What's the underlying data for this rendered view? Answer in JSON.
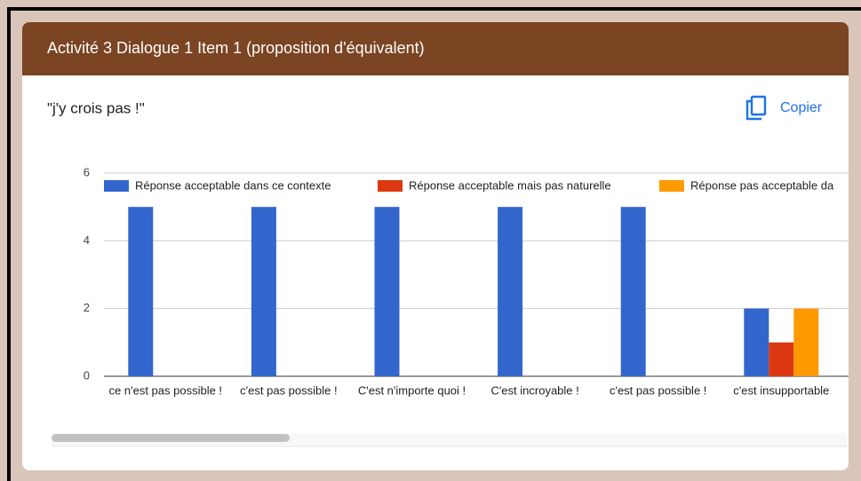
{
  "header": {
    "title": "Activité 3 Dialogue 1 Item 1 (proposition d'équivalent)"
  },
  "question": "\"j'y crois pas !\"",
  "copy_label": "Copier",
  "chart_data": {
    "type": "bar",
    "categories": [
      "ce n'est pas possible !",
      "c'est pas possible !",
      "C'est n'importe quoi !",
      "C'est incroyable !",
      "c'est pas possible !",
      "c'est insupportable"
    ],
    "series": [
      {
        "name": "Réponse acceptable dans ce contexte",
        "color": "#3366cc",
        "values": [
          5,
          5,
          5,
          5,
          5,
          2
        ]
      },
      {
        "name": "Réponse acceptable mais pas naturelle",
        "color": "#dc3912",
        "values": [
          0,
          0,
          0,
          0,
          0,
          1
        ]
      },
      {
        "name": "Réponse pas acceptable da",
        "color": "#ff9900",
        "values": [
          0,
          0,
          0,
          0,
          0,
          2
        ]
      }
    ],
    "ylim": [
      0,
      6
    ],
    "yticks": [
      0,
      2,
      4,
      6
    ],
    "grid": true,
    "legend": "top"
  }
}
